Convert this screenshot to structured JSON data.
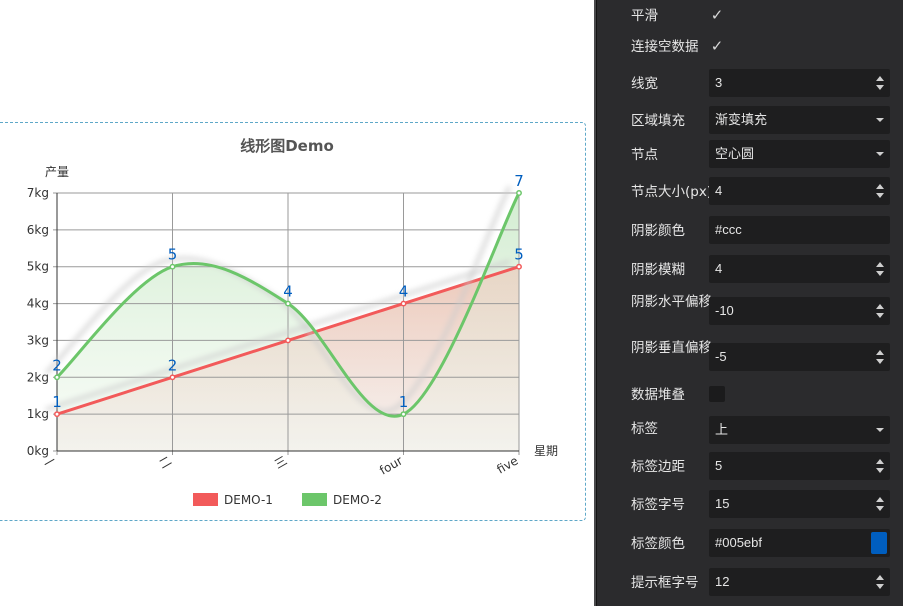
{
  "chart_data": {
    "type": "line",
    "title": "线形图Demo",
    "ylabel": "产量",
    "xlabel": "星期",
    "categories": [
      "一",
      "二",
      "三",
      "four",
      "five"
    ],
    "y_ticks": [
      "0kg",
      "1kg",
      "2kg",
      "3kg",
      "4kg",
      "5kg",
      "6kg",
      "7kg"
    ],
    "ylim": [
      0,
      7
    ],
    "series": [
      {
        "name": "DEMO-1",
        "values": [
          1,
          2,
          3,
          4,
          5
        ],
        "color": "#f25a5a",
        "smooth": false,
        "labels": [
          "1",
          "2",
          "",
          "4",
          "5"
        ]
      },
      {
        "name": "DEMO-2",
        "values": [
          2,
          5,
          4,
          1,
          7
        ],
        "color": "#6cc66a",
        "smooth": true,
        "labels": [
          "2",
          "5",
          "4",
          "1",
          "7"
        ]
      }
    ],
    "legend": "bottom-center",
    "label_color": "#005ebf",
    "grid": true
  },
  "panel": {
    "smooth_label": "平滑",
    "connect_null_label": "连接空数据",
    "line_width_label": "线宽",
    "line_width_value": "3",
    "area_fill_label": "区域填充",
    "area_fill_value": "渐变填充",
    "node_label": "节点",
    "node_value": "空心圆",
    "node_size_label": "节点大小(px)",
    "node_size_value": "4",
    "shadow_color_label": "阴影颜色",
    "shadow_color_value": "#ccc",
    "shadow_blur_label": "阴影模糊",
    "shadow_blur_value": "4",
    "shadow_x_label": "阴影水平偏移",
    "shadow_x_value": "-10",
    "shadow_y_label": "阴影垂直偏移",
    "shadow_y_value": "-5",
    "stack_label": "数据堆叠",
    "label_label": "标签",
    "label_value": "上",
    "label_margin_label": "标签边距",
    "label_margin_value": "5",
    "label_font_label": "标签字号",
    "label_font_value": "15",
    "label_color_label": "标签颜色",
    "label_color_value": "#005ebf",
    "tooltip_font_label": "提示框字号",
    "tooltip_font_value": "12",
    "smooth_checked": true,
    "connect_null_checked": true,
    "stack_checked": false
  }
}
